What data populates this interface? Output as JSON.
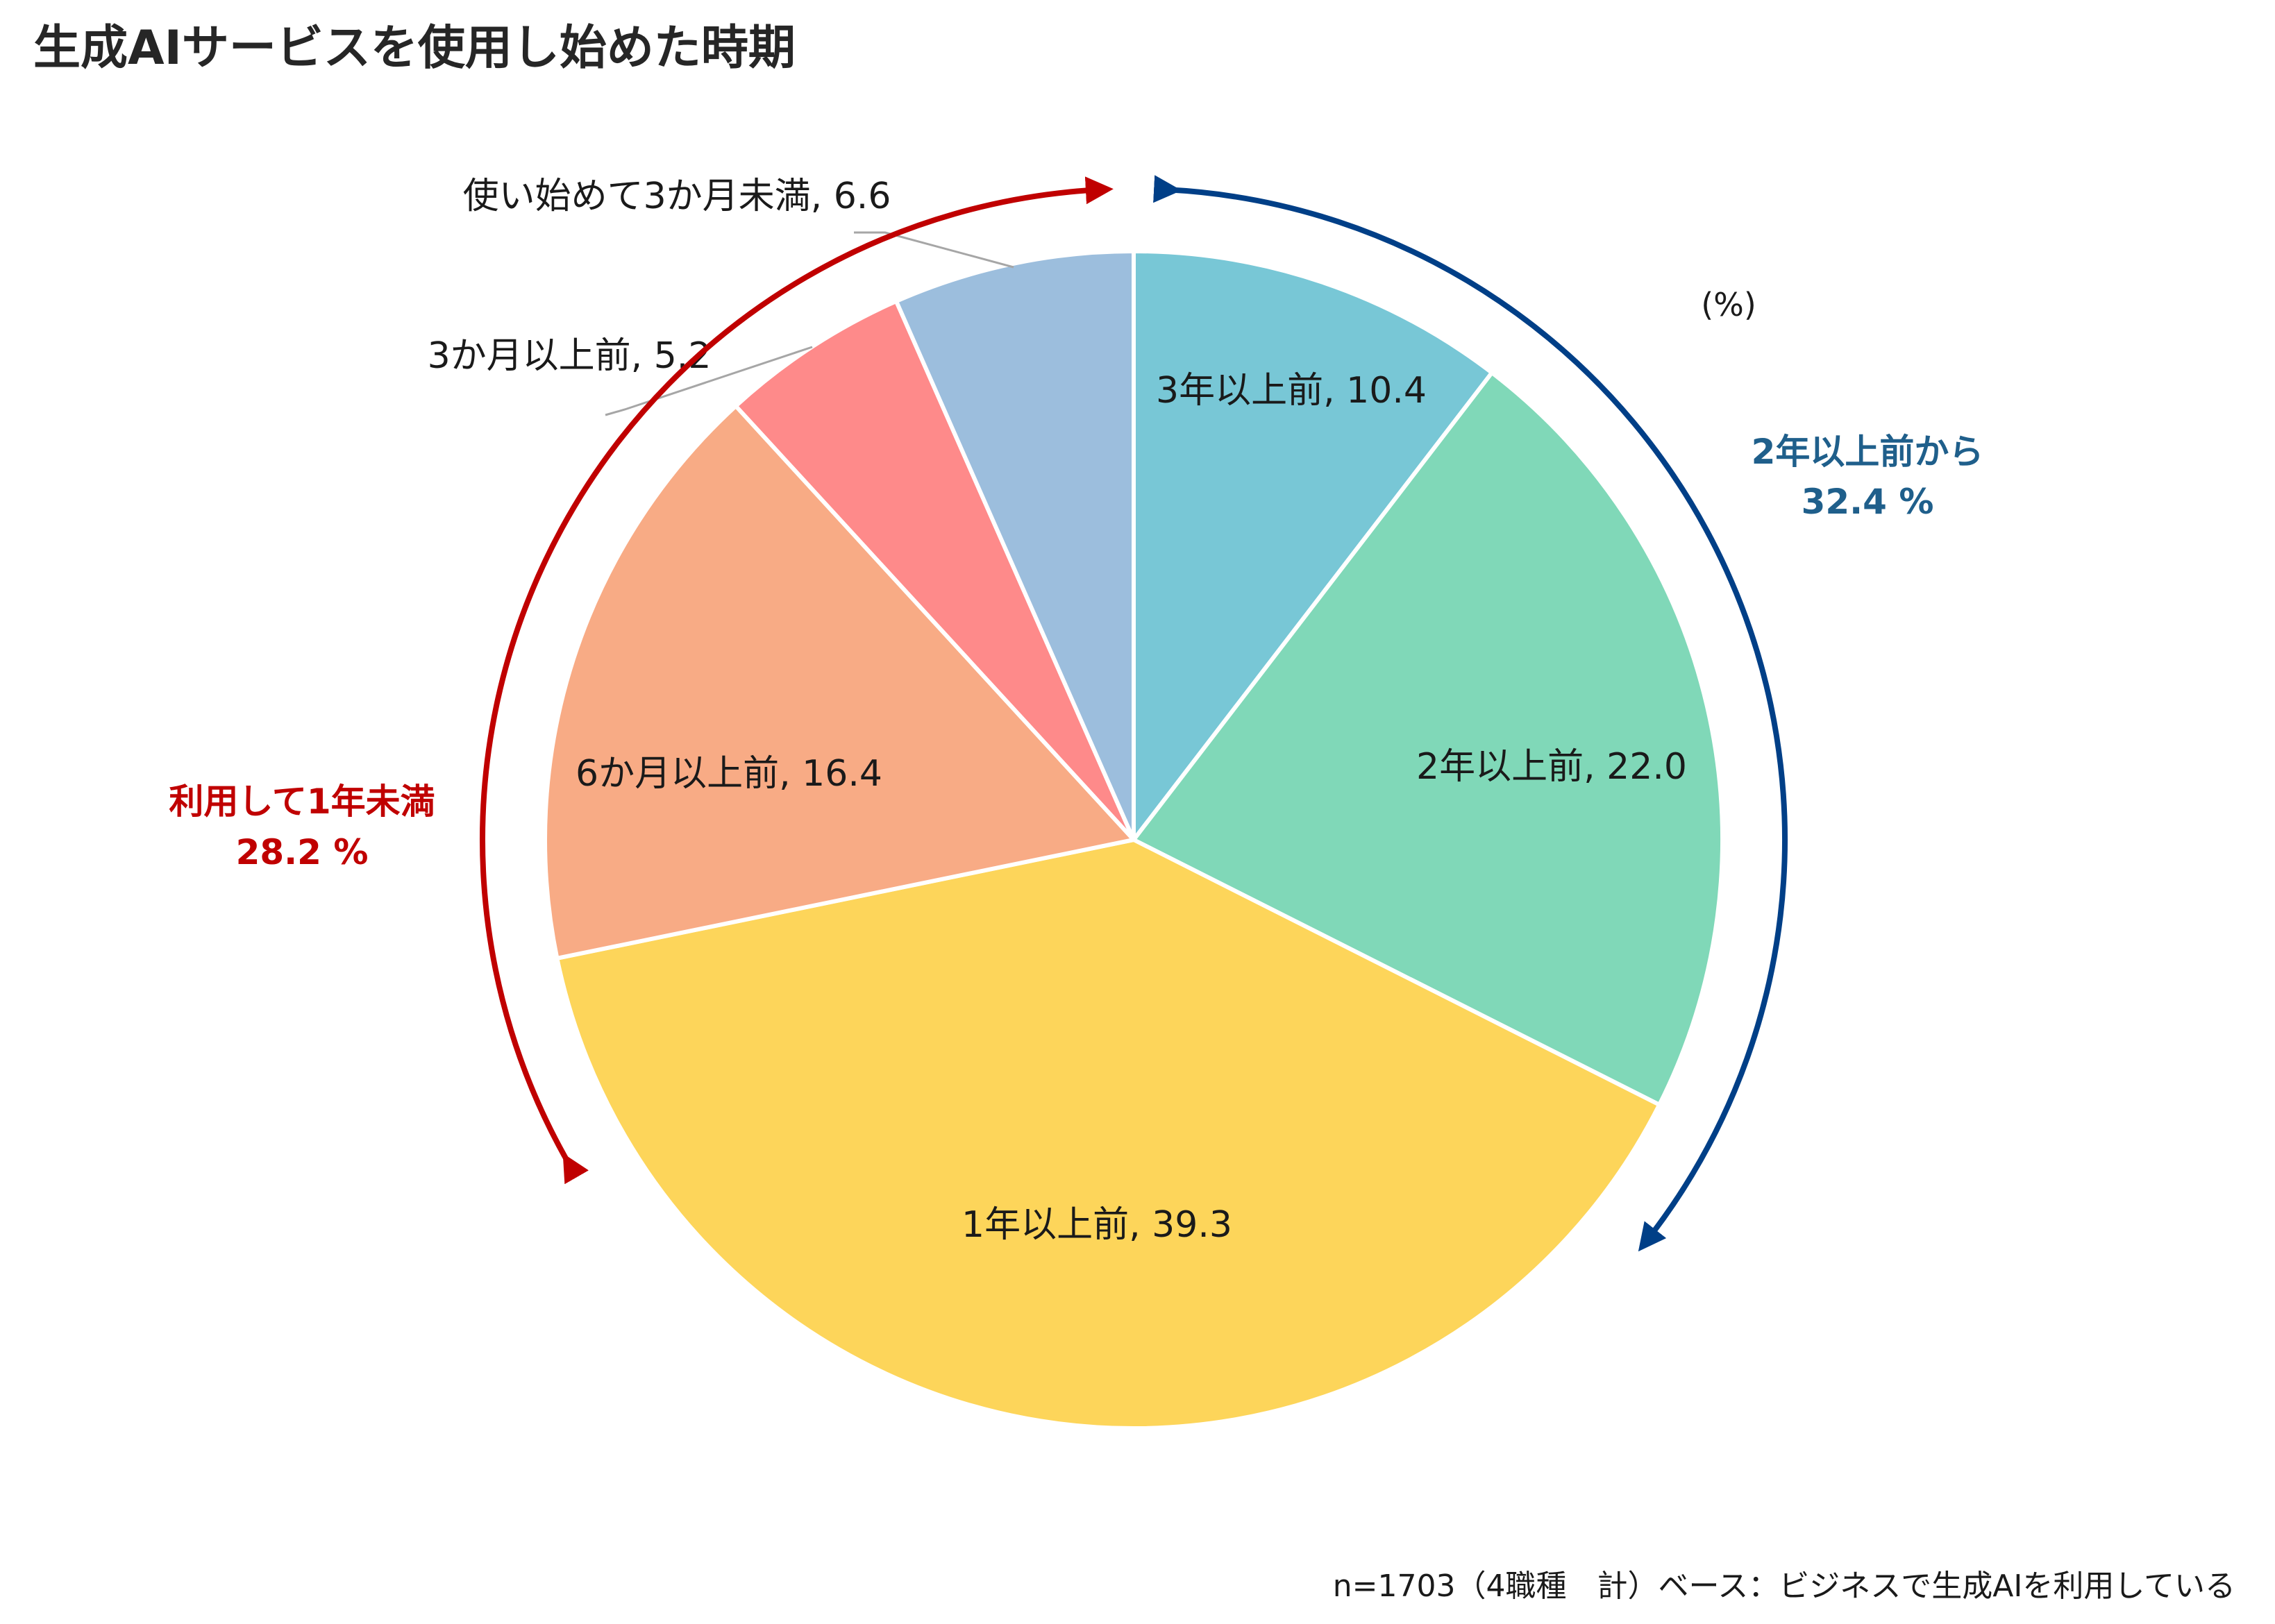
{
  "title": "生成AIサービスを使用し始めた時期",
  "unit_label": "(%)",
  "note": "n=1703（4職種　計）ベース：ビジネスで生成AIを利用している",
  "annotations": {
    "red": {
      "line1": "利用して1年未満",
      "line2": "28.2 %",
      "color": "#c00000"
    },
    "blue": {
      "line1": "2年以上前から",
      "line2": "32.4 %",
      "color": "#003f87"
    }
  },
  "chart_data": {
    "type": "pie",
    "start_angle": "12 o'clock",
    "direction": "clockwise",
    "slices": [
      {
        "label": "3年以上前",
        "value": 10.4,
        "display": "3年以上前, 10.4",
        "color": "#78c7d6"
      },
      {
        "label": "2年以上前",
        "value": 22.0,
        "display": "2年以上前, 22.0",
        "color": "#80d8b8"
      },
      {
        "label": "1年以上前",
        "value": 39.3,
        "display": "1年以上前, 39.3",
        "color": "#fdd55a"
      },
      {
        "label": "6か月以上前",
        "value": 16.4,
        "display": "6か月以上前, 16.4",
        "color": "#f8ab85"
      },
      {
        "label": "3か月以上前",
        "value": 5.2,
        "display": "3か月以上前, 5.2",
        "color": "#fe8a8a"
      },
      {
        "label": "使い始めて3か月未満",
        "value": 6.6,
        "display": "使い始めて3か月未満, 6.6",
        "color": "#9cbedd"
      }
    ]
  }
}
